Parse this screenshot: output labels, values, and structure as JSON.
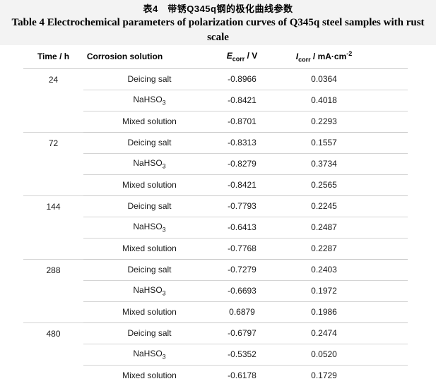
{
  "caption": {
    "zh": "表4　带锈Q345q钢的极化曲线参数",
    "en": "Table 4  Electrochemical parameters of polarization curves of Q345q steel samples with rust scale"
  },
  "columns": [
    {
      "label": "Time / h"
    },
    {
      "label": "Corrosion solution"
    },
    {
      "symbol": "E",
      "sub": "corr",
      "rest": " / V"
    },
    {
      "symbol": "I",
      "sub": "corr",
      "rest": " / mA·cm",
      "sup": "-2"
    }
  ],
  "chart_data": {
    "type": "table",
    "title_zh": "表4　带锈Q345q钢的极化曲线参数",
    "title_en": "Table 4  Electrochemical parameters of polarization curves of Q345q steel samples with rust scale",
    "columns": [
      "Time / h",
      "Corrosion solution",
      "Ecorr / V",
      "Icorr / mA·cm-2"
    ]
  },
  "groups": [
    {
      "time": "24",
      "rows": [
        {
          "solution": {
            "name": "Deicing salt",
            "sub": ""
          },
          "e_corr": "-0.8966",
          "i_corr": "0.0364"
        },
        {
          "solution": {
            "name": "NaHSO",
            "sub": "3"
          },
          "e_corr": "-0.8421",
          "i_corr": "0.4018"
        },
        {
          "solution": {
            "name": "Mixed solution",
            "sub": ""
          },
          "e_corr": "-0.8701",
          "i_corr": "0.2293"
        }
      ]
    },
    {
      "time": "72",
      "rows": [
        {
          "solution": {
            "name": "Deicing salt",
            "sub": ""
          },
          "e_corr": "-0.8313",
          "i_corr": "0.1557"
        },
        {
          "solution": {
            "name": "NaHSO",
            "sub": "3"
          },
          "e_corr": "-0.8279",
          "i_corr": "0.3734"
        },
        {
          "solution": {
            "name": "Mixed solution",
            "sub": ""
          },
          "e_corr": "-0.8421",
          "i_corr": "0.2565"
        }
      ]
    },
    {
      "time": "144",
      "rows": [
        {
          "solution": {
            "name": "Deicing salt",
            "sub": ""
          },
          "e_corr": "-0.7793",
          "i_corr": "0.2245"
        },
        {
          "solution": {
            "name": "NaHSO",
            "sub": "3"
          },
          "e_corr": "-0.6413",
          "i_corr": "0.2487"
        },
        {
          "solution": {
            "name": "Mixed solution",
            "sub": ""
          },
          "e_corr": "-0.7768",
          "i_corr": "0.2287"
        }
      ]
    },
    {
      "time": "288",
      "rows": [
        {
          "solution": {
            "name": "Deicing salt",
            "sub": ""
          },
          "e_corr": "-0.7279",
          "i_corr": "0.2403"
        },
        {
          "solution": {
            "name": "NaHSO",
            "sub": "3"
          },
          "e_corr": "-0.6693",
          "i_corr": "0.1972"
        },
        {
          "solution": {
            "name": "Mixed solution",
            "sub": ""
          },
          "e_corr": "0.6879",
          "i_corr": "0.1986"
        }
      ]
    },
    {
      "time": "480",
      "rows": [
        {
          "solution": {
            "name": "Deicing salt",
            "sub": ""
          },
          "e_corr": "-0.6797",
          "i_corr": "0.2474"
        },
        {
          "solution": {
            "name": "NaHSO",
            "sub": "3"
          },
          "e_corr": "-0.5352",
          "i_corr": "0.0520"
        },
        {
          "solution": {
            "name": "Mixed solution",
            "sub": ""
          },
          "e_corr": "-0.6178",
          "i_corr": "0.1729"
        }
      ]
    }
  ],
  "colors": {
    "caption_band_bg": "#f3f3f3",
    "rule_line": "#c9c9c9",
    "inner_rule_line": "#d4d4d4",
    "text": "#1a1a1a"
  }
}
